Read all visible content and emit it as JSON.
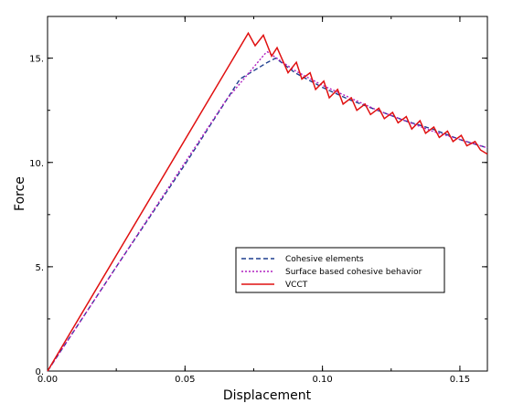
{
  "chart_data": {
    "type": "line",
    "title": "",
    "xlabel": "Displacement",
    "ylabel": "Force",
    "xlim": [
      0,
      0.16
    ],
    "ylim": [
      0,
      17.0
    ],
    "x_ticks": [
      {
        "value": 0.0,
        "label": "0.00"
      },
      {
        "value": 0.05,
        "label": "0.05"
      },
      {
        "value": 0.1,
        "label": "0.10"
      },
      {
        "value": 0.15,
        "label": "0.15"
      }
    ],
    "y_ticks": [
      {
        "value": 0,
        "label": "0."
      },
      {
        "value": 5,
        "label": "5."
      },
      {
        "value": 10,
        "label": "10."
      },
      {
        "value": 15,
        "label": "15."
      }
    ],
    "grid": false,
    "legend_position": "center-right",
    "series": [
      {
        "name": "Cohesive elements",
        "color": "#1f3f8f",
        "dash": "dashed",
        "x": [
          0,
          0.025,
          0.05,
          0.07,
          0.08,
          0.083,
          0.09,
          0.1,
          0.11,
          0.12,
          0.13,
          0.14,
          0.15,
          0.16
        ],
        "y": [
          0,
          5.0,
          9.9,
          14.0,
          14.8,
          15.0,
          14.3,
          13.6,
          13.0,
          12.5,
          12.0,
          11.6,
          11.1,
          10.7
        ]
      },
      {
        "name": "Surface based cohesive behavior",
        "color": "#b020c0",
        "dash": "dotted",
        "x": [
          0,
          0.025,
          0.05,
          0.065,
          0.079,
          0.08,
          0.09,
          0.1,
          0.11,
          0.12,
          0.13,
          0.14,
          0.15,
          0.16
        ],
        "y": [
          0,
          5.0,
          10.0,
          13.0,
          15.2,
          15.3,
          14.4,
          13.7,
          13.1,
          12.5,
          12.0,
          11.5,
          11.1,
          10.7
        ]
      },
      {
        "name": "VCCT",
        "color": "#e01010",
        "dash": "solid",
        "x": [
          0,
          0.073,
          0.0755,
          0.0785,
          0.0815,
          0.0835,
          0.0875,
          0.0905,
          0.0925,
          0.0955,
          0.0975,
          0.1005,
          0.1025,
          0.1055,
          0.1075,
          0.1105,
          0.1125,
          0.1155,
          0.1175,
          0.1205,
          0.1225,
          0.1255,
          0.1275,
          0.1305,
          0.1325,
          0.1355,
          0.1375,
          0.1405,
          0.1425,
          0.1455,
          0.1475,
          0.1505,
          0.1525,
          0.1555,
          0.1575,
          0.16
        ],
        "y": [
          0,
          16.2,
          15.6,
          16.1,
          15.1,
          15.5,
          14.3,
          14.8,
          14.0,
          14.3,
          13.5,
          13.9,
          13.1,
          13.5,
          12.8,
          13.1,
          12.5,
          12.8,
          12.3,
          12.6,
          12.1,
          12.4,
          11.9,
          12.2,
          11.6,
          12.0,
          11.4,
          11.7,
          11.2,
          11.5,
          11.0,
          11.3,
          10.8,
          11.0,
          10.6,
          10.4
        ]
      }
    ]
  }
}
